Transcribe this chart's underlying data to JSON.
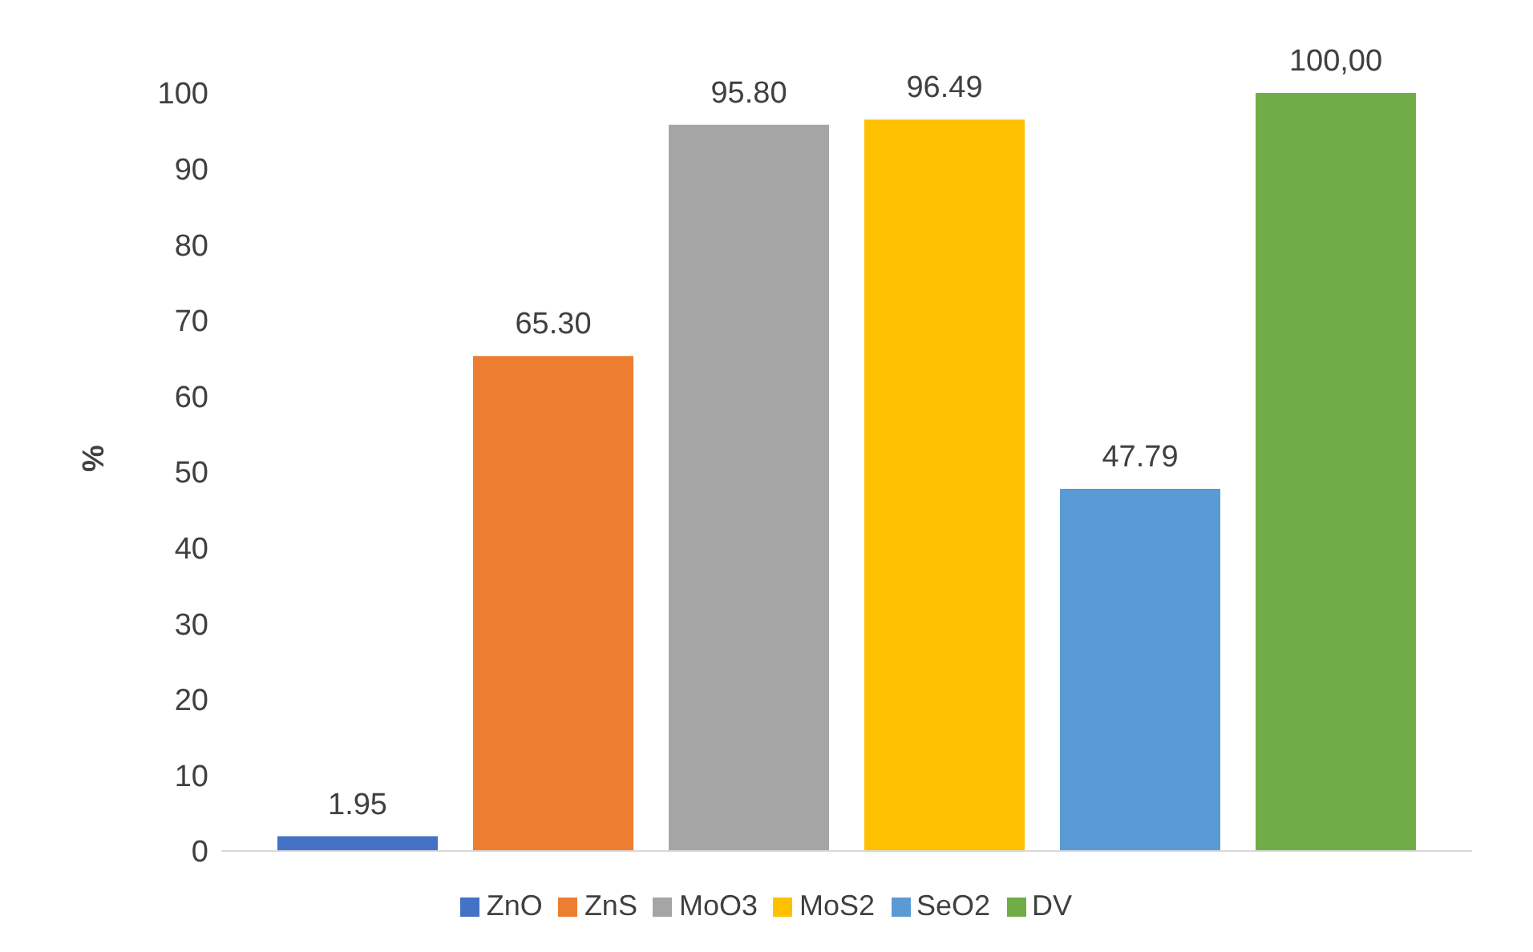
{
  "chart_data": {
    "type": "bar",
    "ylabel": "%",
    "categories": [
      null
    ],
    "series": [
      {
        "name": "ZnO",
        "color": "#4472c4",
        "values": [
          1.95
        ],
        "value_labels": [
          "1.95"
        ]
      },
      {
        "name": "ZnS",
        "color": "#ed7d31",
        "values": [
          65.3
        ],
        "value_labels": [
          "65.30"
        ]
      },
      {
        "name": "MoO3",
        "color": "#a5a5a5",
        "values": [
          95.8
        ],
        "value_labels": [
          "95.80"
        ]
      },
      {
        "name": "MoS2",
        "color": "#ffc000",
        "values": [
          96.49
        ],
        "value_labels": [
          "96.49"
        ]
      },
      {
        "name": "SeO2",
        "color": "#5b9bd5",
        "values": [
          47.79
        ],
        "value_labels": [
          "47.79"
        ]
      },
      {
        "name": "DV",
        "color": "#70ad47",
        "values": [
          100
        ],
        "value_labels": [
          "100,00"
        ]
      }
    ],
    "ylim": [
      0,
      100
    ],
    "yticks": [
      0,
      10,
      20,
      30,
      40,
      50,
      60,
      70,
      80,
      90,
      100
    ],
    "grid": false,
    "legend": "bottom"
  }
}
